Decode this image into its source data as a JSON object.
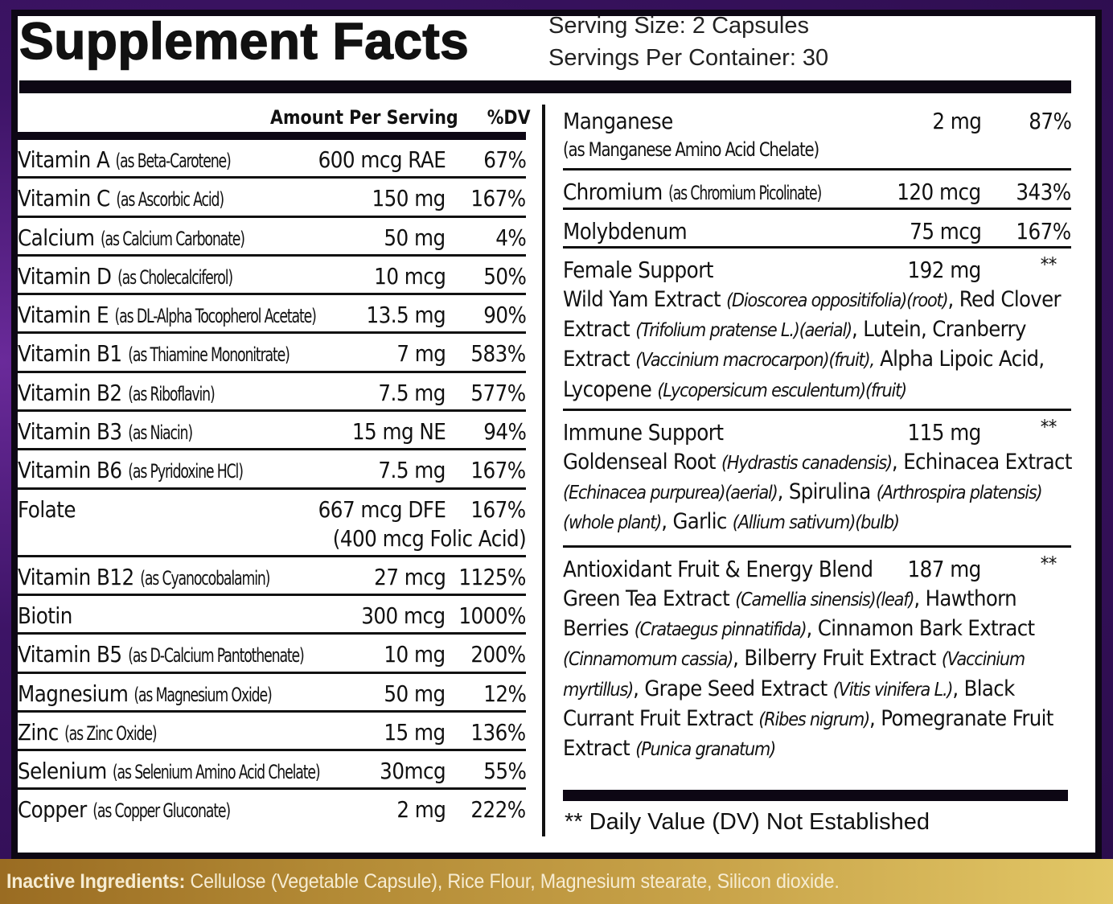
{
  "header": {
    "title": "Supplement Facts",
    "serving_size": "Serving Size: 2 Capsules",
    "servings_per_container": "Servings Per Container: 30"
  },
  "table": {
    "col_amount": "Amount Per Serving",
    "col_dv": "%DV"
  },
  "left_rows": [
    {
      "name": "Vitamin A",
      "source": "(as Beta-Carotene)",
      "amount": "600 mcg RAE",
      "dv": "67%"
    },
    {
      "name": "Vitamin C",
      "source": "(as Ascorbic Acid)",
      "amount": "150 mg",
      "dv": "167%"
    },
    {
      "name": "Calcium",
      "source": "(as Calcium Carbonate)",
      "amount": "50 mg",
      "dv": "4%"
    },
    {
      "name": "Vitamin D",
      "source": "(as Cholecalciferol)",
      "amount": "10 mcg",
      "dv": "50%"
    },
    {
      "name": "Vitamin E",
      "source": "(as DL-Alpha Tocopherol Acetate)",
      "amount": "13.5 mg",
      "dv": "90%"
    },
    {
      "name": "Vitamin B1",
      "source": "(as Thiamine Mononitrate)",
      "amount": "7 mg",
      "dv": "583%"
    },
    {
      "name": "Vitamin B2",
      "source": "(as Riboflavin)",
      "amount": "7.5 mg",
      "dv": "577%"
    },
    {
      "name": "Vitamin B3",
      "source": "(as Niacin)",
      "amount": "15 mg NE",
      "dv": "94%"
    },
    {
      "name": "Vitamin B6",
      "source": "(as Pyridoxine HCl)",
      "amount": "7.5 mg",
      "dv": "167%"
    },
    {
      "name": "Folate",
      "source": "",
      "amount": "667 mcg DFE",
      "dv": "167%",
      "sub": "(400 mcg Folic Acid)"
    },
    {
      "name": "Vitamin B12",
      "source": "(as Cyanocobalamin)",
      "amount": "27 mcg",
      "dv": "1125%"
    },
    {
      "name": "Biotin",
      "source": "",
      "amount": "300 mcg",
      "dv": "1000%"
    },
    {
      "name": "Vitamin B5",
      "source": "(as D-Calcium Pantothenate)",
      "amount": "10 mg",
      "dv": "200%"
    },
    {
      "name": "Magnesium",
      "source": "(as Magnesium Oxide)",
      "amount": "50 mg",
      "dv": "12%"
    },
    {
      "name": "Zinc",
      "source": "(as Zinc Oxide)",
      "amount": "15 mg",
      "dv": "136%"
    },
    {
      "name": "Selenium",
      "source": "(as Selenium Amino Acid Chelate)",
      "amount": "30mcg",
      "dv": "55%"
    },
    {
      "name": "Copper",
      "source": "(as Copper Gluconate)",
      "amount": "2 mg",
      "dv": "222%"
    }
  ],
  "right_rows": [
    {
      "name": "Manganese",
      "source": "(as Manganese Amino Acid Chelate)",
      "amount": "2 mg",
      "dv": "87%"
    },
    {
      "name": "Chromium",
      "source": "(as Chromium Picolinate)",
      "amount": "120 mcg",
      "dv": "343%"
    },
    {
      "name": "Molybdenum",
      "source": "",
      "amount": "75 mcg",
      "dv": "167%"
    }
  ],
  "blends": [
    {
      "name": "Female Support",
      "amount": "192 mg",
      "dv": "**",
      "ingredients": [
        {
          "t": "Wild Yam Extract "
        },
        {
          "i": "(Dioscorea oppositifolia)(root)"
        },
        {
          "t": ", Red Clover Extract "
        },
        {
          "i": "(Trifolium pratense L.)(aerial)"
        },
        {
          "t": ", Lutein, Cranberry Extract "
        },
        {
          "i": "(Vaccinium macrocarpon)(fruit),"
        },
        {
          "t": " Alpha Lipoic Acid, Lycopene "
        },
        {
          "i": "(Lycopersicum esculentum)(fruit)"
        }
      ]
    },
    {
      "name": "Immune Support",
      "amount": "115 mg",
      "dv": "**",
      "ingredients": [
        {
          "t": "Goldenseal Root "
        },
        {
          "i": "(Hydrastis canadensis)"
        },
        {
          "t": ", Echinacea Extract "
        },
        {
          "i": "(Echinacea purpurea)(aerial)"
        },
        {
          "t": ", Spirulina "
        },
        {
          "i": "(Arthrospira platensis)(whole plant)"
        },
        {
          "t": ", Garlic "
        },
        {
          "i": "(Allium sativum)(bulb)"
        }
      ]
    },
    {
      "name": "Antioxidant Fruit & Energy Blend",
      "amount": "187 mg",
      "dv": "**",
      "ingredients": [
        {
          "t": "Green Tea Extract "
        },
        {
          "i": "(Camellia sinensis)(leaf)"
        },
        {
          "t": ", Hawthorn Berries "
        },
        {
          "i": "(Crataegus pinnatifida)"
        },
        {
          "t": ", Cinnamon Bark Extract "
        },
        {
          "i": "(Cinnamomum cassia)"
        },
        {
          "t": ", Bilberry Fruit Extract "
        },
        {
          "i": "(Vaccinium myrtillus)"
        },
        {
          "t": ", Grape Seed Extract "
        },
        {
          "i": "(Vitis vinifera L.)"
        },
        {
          "t": ", Black Currant Fruit Extract "
        },
        {
          "i": "(Ribes nigrum)"
        },
        {
          "t": ", Pomegranate Fruit Extract "
        },
        {
          "i": "(Punica granatum)"
        }
      ]
    }
  ],
  "footnote": "** Daily Value (DV) Not Established",
  "inactive": {
    "label": "Inactive Ingredients:",
    "text": " Cellulose (Vegetable Capsule), Rice Flour, Magnesium stearate, Silicon dioxide."
  },
  "colors": {
    "background_purple": "#3d1466",
    "panel": "#ffffff",
    "rule": "#0d0714",
    "gold_band": "#c9a44a",
    "inactive_text": "#f6ecd2"
  }
}
